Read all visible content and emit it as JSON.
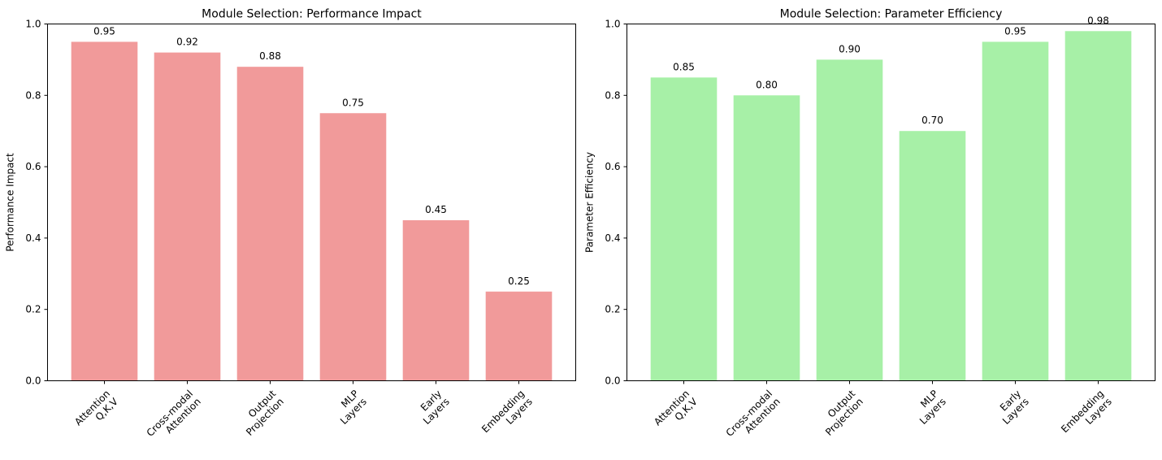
{
  "chart_data": [
    {
      "type": "bar",
      "title": "Module Selection: Performance Impact",
      "xlabel": "",
      "ylabel": "Performance Impact",
      "categories": [
        [
          "Attention",
          "Q,K,V"
        ],
        [
          "Cross-modal",
          "Attention"
        ],
        [
          "Output",
          "Projection"
        ],
        [
          "MLP",
          "Layers"
        ],
        [
          "Early",
          "Layers"
        ],
        [
          "Embedding",
          "Layers"
        ]
      ],
      "values": [
        0.95,
        0.92,
        0.88,
        0.75,
        0.45,
        0.25
      ],
      "value_labels": [
        "0.95",
        "0.92",
        "0.88",
        "0.75",
        "0.45",
        "0.25"
      ],
      "ylim": [
        0,
        1.0
      ],
      "yticks": [
        "0.0",
        "0.2",
        "0.4",
        "0.6",
        "0.8",
        "1.0"
      ],
      "bar_color": "#f19a9a",
      "grid": false,
      "xtick_rotation": "45 degrees"
    },
    {
      "type": "bar",
      "title": "Module Selection: Parameter Efficiency",
      "xlabel": "",
      "ylabel": "Parameter Efficiency",
      "categories": [
        [
          "Attention",
          "Q,K,V"
        ],
        [
          "Cross-modal",
          "Attention"
        ],
        [
          "Output",
          "Projection"
        ],
        [
          "MLP",
          "Layers"
        ],
        [
          "Early",
          "Layers"
        ],
        [
          "Embedding",
          "Layers"
        ]
      ],
      "values": [
        0.85,
        0.8,
        0.9,
        0.7,
        0.95,
        0.98
      ],
      "value_labels": [
        "0.85",
        "0.80",
        "0.90",
        "0.70",
        "0.95",
        "0.98"
      ],
      "ylim": [
        0,
        1.0
      ],
      "yticks": [
        "0.0",
        "0.2",
        "0.4",
        "0.6",
        "0.8",
        "1.0"
      ],
      "bar_color": "#a7f0a7",
      "grid": false,
      "xtick_rotation": "45 degrees"
    }
  ]
}
